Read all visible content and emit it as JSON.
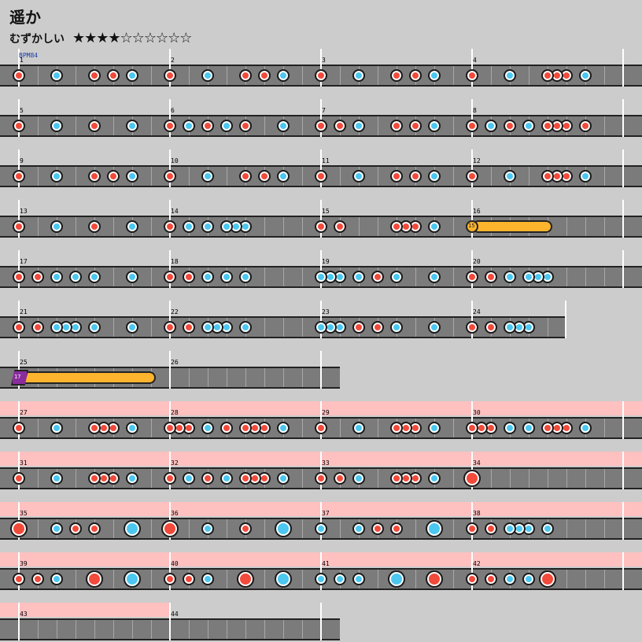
{
  "song": {
    "title": "遥か",
    "difficulty_label": "むずかしい",
    "stars": "★★★★☆☆☆☆☆☆",
    "bpm_label": "BPM84"
  },
  "colors": {
    "background": "#cccccc",
    "lane": "#7b7b7b",
    "don": "#f24a3b",
    "ka": "#4cc7ef",
    "roll": "#ffb42e",
    "balloon": "#8a2b9e",
    "gogo": "#ffc0c0"
  },
  "rows": [
    {
      "measures": [
        1,
        2,
        3,
        4
      ],
      "gogo": false,
      "notes": [
        [
          24,
          "d"
        ],
        [
          72,
          "k"
        ],
        [
          120,
          "d"
        ],
        [
          144,
          "d"
        ],
        [
          168,
          "k"
        ],
        [
          216,
          "d"
        ],
        [
          264,
          "k"
        ],
        [
          312,
          "d"
        ],
        [
          336,
          "d"
        ],
        [
          360,
          "k"
        ],
        [
          408,
          "d"
        ],
        [
          456,
          "k"
        ],
        [
          504,
          "d"
        ],
        [
          528,
          "d"
        ],
        [
          552,
          "k"
        ],
        [
          600,
          "d"
        ],
        [
          648,
          "k"
        ],
        [
          696,
          "d"
        ],
        [
          708,
          "d"
        ],
        [
          720,
          "d"
        ],
        [
          744,
          "k"
        ]
      ]
    },
    {
      "measures": [
        5,
        6,
        7,
        8
      ],
      "gogo": false,
      "notes": [
        [
          24,
          "d"
        ],
        [
          72,
          "k"
        ],
        [
          120,
          "d"
        ],
        [
          168,
          "k"
        ],
        [
          216,
          "d"
        ],
        [
          240,
          "k"
        ],
        [
          264,
          "d"
        ],
        [
          288,
          "k"
        ],
        [
          312,
          "d"
        ],
        [
          360,
          "k"
        ],
        [
          408,
          "d"
        ],
        [
          432,
          "d"
        ],
        [
          456,
          "k"
        ],
        [
          504,
          "d"
        ],
        [
          528,
          "d"
        ],
        [
          552,
          "k"
        ],
        [
          600,
          "d"
        ],
        [
          624,
          "k"
        ],
        [
          648,
          "d"
        ],
        [
          672,
          "k"
        ],
        [
          696,
          "d"
        ],
        [
          708,
          "d"
        ],
        [
          720,
          "d"
        ],
        [
          744,
          "d"
        ]
      ]
    },
    {
      "measures": [
        9,
        10,
        11,
        12
      ],
      "gogo": false,
      "notes": [
        [
          24,
          "d"
        ],
        [
          72,
          "k"
        ],
        [
          120,
          "d"
        ],
        [
          144,
          "d"
        ],
        [
          168,
          "k"
        ],
        [
          216,
          "d"
        ],
        [
          264,
          "k"
        ],
        [
          312,
          "d"
        ],
        [
          336,
          "d"
        ],
        [
          360,
          "k"
        ],
        [
          408,
          "d"
        ],
        [
          456,
          "k"
        ],
        [
          504,
          "d"
        ],
        [
          528,
          "d"
        ],
        [
          552,
          "k"
        ],
        [
          600,
          "d"
        ],
        [
          648,
          "k"
        ],
        [
          696,
          "d"
        ],
        [
          708,
          "d"
        ],
        [
          720,
          "d"
        ],
        [
          744,
          "k"
        ]
      ]
    },
    {
      "measures": [
        13,
        14,
        15,
        16
      ],
      "gogo": false,
      "notes": [
        [
          24,
          "d"
        ],
        [
          72,
          "k"
        ],
        [
          120,
          "d"
        ],
        [
          168,
          "k"
        ],
        [
          216,
          "d"
        ],
        [
          240,
          "k"
        ],
        [
          264,
          "k"
        ],
        [
          288,
          "k"
        ],
        [
          300,
          "k"
        ],
        [
          312,
          "k"
        ],
        [
          408,
          "d"
        ],
        [
          432,
          "d"
        ],
        [
          504,
          "d"
        ],
        [
          516,
          "d"
        ],
        [
          528,
          "d"
        ],
        [
          552,
          "k"
        ]
      ],
      "roll": {
        "start": 600,
        "end": 702,
        "count": "15"
      }
    },
    {
      "measures": [
        17,
        18,
        19,
        20
      ],
      "gogo": false,
      "notes": [
        [
          24,
          "d"
        ],
        [
          48,
          "d"
        ],
        [
          72,
          "k"
        ],
        [
          96,
          "k"
        ],
        [
          120,
          "k"
        ],
        [
          168,
          "k"
        ],
        [
          216,
          "d"
        ],
        [
          240,
          "d"
        ],
        [
          264,
          "k"
        ],
        [
          288,
          "k"
        ],
        [
          312,
          "k"
        ],
        [
          408,
          "k"
        ],
        [
          420,
          "k"
        ],
        [
          432,
          "k"
        ],
        [
          456,
          "k"
        ],
        [
          480,
          "d"
        ],
        [
          504,
          "k"
        ],
        [
          552,
          "k"
        ],
        [
          600,
          "d"
        ],
        [
          624,
          "d"
        ],
        [
          648,
          "k"
        ],
        [
          672,
          "k"
        ],
        [
          684,
          "k"
        ],
        [
          696,
          "k"
        ]
      ]
    },
    {
      "measures": [
        21,
        22,
        23,
        24
      ],
      "gogo": false,
      "width": 720,
      "notes": [
        [
          24,
          "d"
        ],
        [
          48,
          "d"
        ],
        [
          72,
          "k"
        ],
        [
          84,
          "k"
        ],
        [
          96,
          "k"
        ],
        [
          120,
          "k"
        ],
        [
          168,
          "k"
        ],
        [
          216,
          "d"
        ],
        [
          240,
          "d"
        ],
        [
          264,
          "k"
        ],
        [
          276,
          "k"
        ],
        [
          288,
          "k"
        ],
        [
          312,
          "k"
        ],
        [
          408,
          "k"
        ],
        [
          420,
          "k"
        ],
        [
          432,
          "k"
        ],
        [
          456,
          "d"
        ],
        [
          480,
          "d"
        ],
        [
          504,
          "k"
        ],
        [
          552,
          "k"
        ],
        [
          600,
          "d"
        ],
        [
          624,
          "d"
        ],
        [
          648,
          "k"
        ],
        [
          660,
          "k"
        ],
        [
          672,
          "k"
        ]
      ]
    },
    {
      "measures": [
        25,
        26
      ],
      "gogo": false,
      "width": 432,
      "notes": [],
      "balloon": {
        "start": 24,
        "end": 198,
        "count": "17"
      }
    },
    {
      "measures": [
        27,
        28,
        29,
        30
      ],
      "gogo": true,
      "notes": [
        [
          24,
          "d"
        ],
        [
          72,
          "k"
        ],
        [
          120,
          "d"
        ],
        [
          132,
          "d"
        ],
        [
          144,
          "d"
        ],
        [
          168,
          "k"
        ],
        [
          216,
          "d"
        ],
        [
          228,
          "d"
        ],
        [
          240,
          "d"
        ],
        [
          264,
          "k"
        ],
        [
          288,
          "d"
        ],
        [
          312,
          "d"
        ],
        [
          324,
          "d"
        ],
        [
          336,
          "d"
        ],
        [
          360,
          "k"
        ],
        [
          408,
          "d"
        ],
        [
          456,
          "k"
        ],
        [
          504,
          "d"
        ],
        [
          516,
          "d"
        ],
        [
          528,
          "d"
        ],
        [
          552,
          "k"
        ],
        [
          600,
          "d"
        ],
        [
          612,
          "d"
        ],
        [
          624,
          "d"
        ],
        [
          648,
          "k"
        ],
        [
          672,
          "k"
        ],
        [
          696,
          "d"
        ],
        [
          708,
          "d"
        ],
        [
          720,
          "d"
        ],
        [
          744,
          "k"
        ]
      ]
    },
    {
      "measures": [
        31,
        32,
        33,
        34
      ],
      "gogo": true,
      "notes": [
        [
          24,
          "d"
        ],
        [
          72,
          "k"
        ],
        [
          120,
          "d"
        ],
        [
          132,
          "d"
        ],
        [
          144,
          "d"
        ],
        [
          168,
          "k"
        ],
        [
          216,
          "d"
        ],
        [
          240,
          "k"
        ],
        [
          264,
          "d"
        ],
        [
          288,
          "k"
        ],
        [
          312,
          "d"
        ],
        [
          324,
          "d"
        ],
        [
          336,
          "d"
        ],
        [
          360,
          "k"
        ],
        [
          408,
          "d"
        ],
        [
          432,
          "d"
        ],
        [
          456,
          "k"
        ],
        [
          504,
          "d"
        ],
        [
          516,
          "d"
        ],
        [
          528,
          "d"
        ],
        [
          552,
          "k"
        ],
        [
          600,
          "D"
        ]
      ]
    },
    {
      "measures": [
        35,
        36,
        37,
        38
      ],
      "gogo": true,
      "notes": [
        [
          24,
          "D"
        ],
        [
          72,
          "k"
        ],
        [
          96,
          "d"
        ],
        [
          120,
          "d"
        ],
        [
          168,
          "K"
        ],
        [
          216,
          "D"
        ],
        [
          264,
          "k"
        ],
        [
          312,
          "d"
        ],
        [
          360,
          "K"
        ],
        [
          408,
          "k"
        ],
        [
          456,
          "k"
        ],
        [
          480,
          "d"
        ],
        [
          504,
          "d"
        ],
        [
          552,
          "K"
        ],
        [
          600,
          "d"
        ],
        [
          624,
          "d"
        ],
        [
          648,
          "k"
        ],
        [
          660,
          "k"
        ],
        [
          672,
          "k"
        ],
        [
          696,
          "k"
        ]
      ]
    },
    {
      "measures": [
        39,
        40,
        41,
        42
      ],
      "gogo": true,
      "notes": [
        [
          24,
          "d"
        ],
        [
          48,
          "d"
        ],
        [
          72,
          "k"
        ],
        [
          120,
          "D"
        ],
        [
          168,
          "K"
        ],
        [
          216,
          "d"
        ],
        [
          240,
          "d"
        ],
        [
          264,
          "k"
        ],
        [
          312,
          "D"
        ],
        [
          360,
          "K"
        ],
        [
          408,
          "k"
        ],
        [
          432,
          "k"
        ],
        [
          456,
          "k"
        ],
        [
          504,
          "K"
        ],
        [
          552,
          "D"
        ],
        [
          600,
          "d"
        ],
        [
          624,
          "d"
        ],
        [
          648,
          "k"
        ],
        [
          672,
          "k"
        ],
        [
          696,
          "D"
        ]
      ]
    },
    {
      "measures": [
        43,
        44
      ],
      "gogo": true,
      "width": 432,
      "gogo_width": 216,
      "notes": []
    }
  ]
}
